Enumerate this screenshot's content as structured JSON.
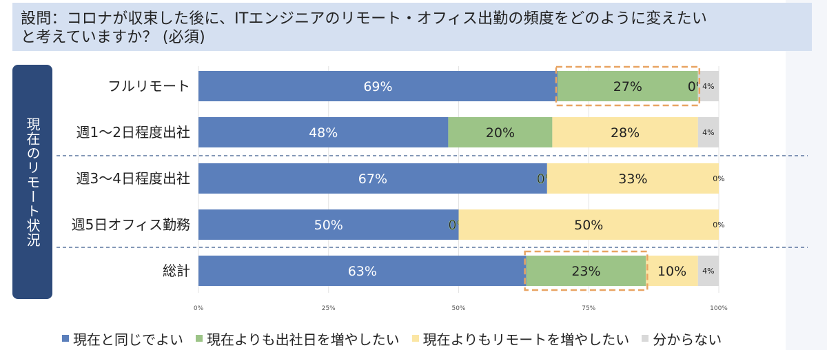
{
  "question": {
    "line1": "設問：コロナが収束した後に、ITエンジニアのリモート・オフィス出勤の頻度をどのように変えたい",
    "line2": "と考えていますか？ (必須)"
  },
  "side_label": "現在のリモート状況",
  "colors": {
    "same": "#5b7fbb",
    "more_office": "#9cc487",
    "more_remote": "#fbe6a4",
    "unknown": "#d9d9d9",
    "highlight": "#e8a462",
    "divider": "#3a5a8c"
  },
  "chart_data": {
    "type": "bar",
    "orientation": "horizontal",
    "stacked": true,
    "categories": [
      "フルリモート",
      "週1～2日程度出社",
      "週3～4日程度出社",
      "週5日オフィス勤務",
      "総計"
    ],
    "series": [
      {
        "name": "現在と同じでよい",
        "values": [
          69,
          48,
          67,
          50,
          63
        ],
        "labels": [
          "69%",
          "48%",
          "67%",
          "50%",
          "63%"
        ]
      },
      {
        "name": "現在よりも出社日を増やしたい",
        "values": [
          27,
          20,
          0,
          0,
          23
        ],
        "labels": [
          "27%",
          "20%",
          "0%",
          "0%",
          "23%"
        ]
      },
      {
        "name": "現在よりもリモートを増やしたい",
        "values": [
          0,
          28,
          33,
          50,
          10
        ],
        "labels": [
          "0%",
          "28%",
          "33%",
          "50%",
          "10%"
        ]
      },
      {
        "name": "分からない",
        "values": [
          4,
          4,
          0,
          0,
          4
        ],
        "labels": [
          "4%",
          "4%",
          "0%",
          "0%",
          "4%"
        ]
      }
    ],
    "xlim": [
      0,
      100
    ],
    "xticks": [
      "0%",
      "25%",
      "50%",
      "75%",
      "100%"
    ],
    "grid": true,
    "legend_position": "bottom",
    "highlights": [
      {
        "category": "フルリモート",
        "series": "現在よりも出社日を増やしたい"
      },
      {
        "category": "総計",
        "series": "現在よりも出社日を増やしたい"
      }
    ]
  }
}
